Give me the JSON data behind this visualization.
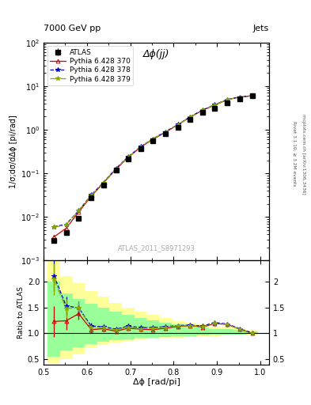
{
  "title_left": "7000 GeV pp",
  "title_right": "Jets",
  "annotation": "Δϕ(jj)",
  "watermark": "ATLAS_2011_S8971293",
  "right_label_top": "Rivet 3.1.10, ≥ 3.2M events",
  "right_label_bot": "mcplots.cern.ch [arXiv:1306.3436]",
  "ylabel_main": "1/σ;dσ/dΔϕ [pi/rad]",
  "ylabel_ratio": "Ratio to ATLAS",
  "xlabel": "Δϕ [rad/pi]",
  "xlim": [
    0.5,
    1.02
  ],
  "ylim_main": [
    0.001,
    100.0
  ],
  "ylim_ratio": [
    0.4,
    2.4
  ],
  "atlas_x": [
    0.524,
    0.552,
    0.581,
    0.61,
    0.638,
    0.667,
    0.695,
    0.724,
    0.752,
    0.781,
    0.81,
    0.838,
    0.867,
    0.895,
    0.924,
    0.952,
    0.981
  ],
  "atlas_y": [
    0.00285,
    0.00445,
    0.0094,
    0.028,
    0.055,
    0.12,
    0.21,
    0.37,
    0.56,
    0.8,
    1.15,
    1.7,
    2.5,
    3.1,
    4.2,
    5.2,
    6.0
  ],
  "atlas_yerr": [
    0.0003,
    0.0004,
    0.0008,
    0.002,
    0.004,
    0.008,
    0.014,
    0.024,
    0.035,
    0.05,
    0.07,
    0.1,
    0.14,
    0.18,
    0.24,
    0.3,
    0.35
  ],
  "py370_x": [
    0.524,
    0.552,
    0.581,
    0.61,
    0.638,
    0.667,
    0.695,
    0.724,
    0.752,
    0.781,
    0.81,
    0.838,
    0.867,
    0.895,
    0.924,
    0.952,
    0.981
  ],
  "py370_y": [
    0.0035,
    0.0055,
    0.013,
    0.03,
    0.06,
    0.125,
    0.23,
    0.4,
    0.6,
    0.88,
    1.3,
    1.95,
    2.8,
    3.7,
    4.9,
    5.6,
    6.0
  ],
  "py378_x": [
    0.524,
    0.552,
    0.581,
    0.61,
    0.638,
    0.667,
    0.695,
    0.724,
    0.752,
    0.781,
    0.81,
    0.838,
    0.867,
    0.895,
    0.924,
    0.952,
    0.981
  ],
  "py378_y": [
    0.006,
    0.0068,
    0.014,
    0.032,
    0.062,
    0.13,
    0.24,
    0.41,
    0.62,
    0.9,
    1.32,
    1.98,
    2.85,
    3.75,
    4.95,
    5.65,
    6.05
  ],
  "py379_x": [
    0.524,
    0.552,
    0.581,
    0.61,
    0.638,
    0.667,
    0.695,
    0.724,
    0.752,
    0.781,
    0.81,
    0.838,
    0.867,
    0.895,
    0.924,
    0.952,
    0.981
  ],
  "py379_y": [
    0.0058,
    0.0066,
    0.014,
    0.031,
    0.061,
    0.128,
    0.235,
    0.405,
    0.615,
    0.895,
    1.31,
    1.96,
    2.82,
    3.72,
    4.92,
    5.62,
    6.02
  ],
  "ratio_py370": [
    1.23,
    1.24,
    1.38,
    1.07,
    1.09,
    1.04,
    1.1,
    1.08,
    1.07,
    1.1,
    1.13,
    1.15,
    1.12,
    1.19,
    1.17,
    1.08,
    1.0
  ],
  "ratio_py378": [
    2.11,
    1.53,
    1.49,
    1.14,
    1.13,
    1.08,
    1.14,
    1.11,
    1.11,
    1.13,
    1.15,
    1.16,
    1.14,
    1.21,
    1.18,
    1.09,
    1.01
  ],
  "ratio_py379": [
    2.04,
    1.48,
    1.49,
    1.11,
    1.11,
    1.07,
    1.12,
    1.09,
    1.1,
    1.12,
    1.14,
    1.15,
    1.13,
    1.2,
    1.17,
    1.08,
    1.0
  ],
  "ratio_yerr_py370": [
    0.3,
    0.18,
    0.12,
    0.06,
    0.05,
    0.04,
    0.04,
    0.04,
    0.03,
    0.03,
    0.03,
    0.03,
    0.03,
    0.04,
    0.04,
    0.03,
    0.02
  ],
  "ratio_yerr_py378": [
    0.3,
    0.18,
    0.12,
    0.06,
    0.05,
    0.04,
    0.04,
    0.04,
    0.03,
    0.03,
    0.03,
    0.03,
    0.03,
    0.04,
    0.04,
    0.03,
    0.02
  ],
  "ratio_yerr_py379": [
    0.3,
    0.18,
    0.12,
    0.06,
    0.05,
    0.04,
    0.04,
    0.04,
    0.03,
    0.03,
    0.03,
    0.03,
    0.03,
    0.04,
    0.04,
    0.03,
    0.02
  ],
  "band_x_edges": [
    0.51,
    0.538,
    0.567,
    0.595,
    0.624,
    0.652,
    0.681,
    0.709,
    0.738,
    0.767,
    0.795,
    0.824,
    0.852,
    0.881,
    0.909,
    0.938,
    0.967,
    0.995
  ],
  "band_yellow_lo": [
    0.42,
    0.5,
    0.6,
    0.72,
    0.78,
    0.82,
    0.86,
    0.88,
    0.9,
    0.91,
    0.92,
    0.93,
    0.94,
    0.95,
    0.96,
    0.97,
    0.98
  ],
  "band_yellow_hi": [
    2.4,
    2.1,
    1.97,
    1.82,
    1.7,
    1.59,
    1.5,
    1.41,
    1.35,
    1.29,
    1.24,
    1.2,
    1.17,
    1.13,
    1.11,
    1.08,
    1.05
  ],
  "band_green_lo": [
    0.55,
    0.67,
    0.73,
    0.8,
    0.84,
    0.87,
    0.89,
    0.91,
    0.92,
    0.93,
    0.94,
    0.95,
    0.96,
    0.97,
    0.97,
    0.98,
    0.99
  ],
  "band_green_hi": [
    2.0,
    1.77,
    1.66,
    1.57,
    1.49,
    1.42,
    1.36,
    1.3,
    1.25,
    1.21,
    1.17,
    1.14,
    1.12,
    1.09,
    1.08,
    1.06,
    1.04
  ],
  "color_py370": "#cc0000",
  "color_py378": "#0000cc",
  "color_py379": "#88aa00",
  "color_atlas": "#000000",
  "color_yellow": "#ffff99",
  "color_green": "#99ff99"
}
